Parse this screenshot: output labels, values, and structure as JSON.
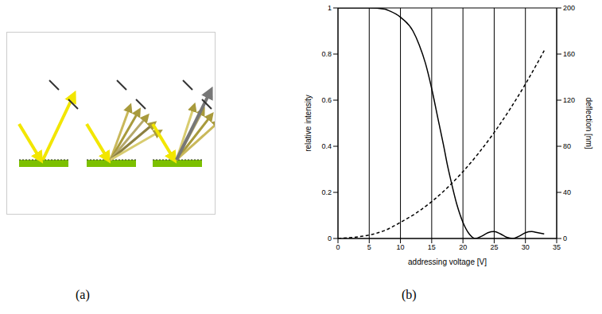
{
  "panel_labels": [
    "(a)",
    "(b)"
  ],
  "chart_data": {
    "type": "line",
    "xlabel": "addressing voltage [V]",
    "ylabel": "relative intensity",
    "y2label": "deflection [nm]",
    "xlim": [
      0,
      35
    ],
    "xticks": [
      0,
      5,
      10,
      15,
      20,
      25,
      30,
      35
    ],
    "ylim": [
      0,
      1
    ],
    "yticks": [
      0,
      0.2,
      0.4,
      0.6,
      0.8,
      1
    ],
    "y2lim": [
      0,
      200
    ],
    "y2ticks": [
      0,
      40,
      80,
      120,
      160,
      200
    ],
    "grid": true,
    "series": [
      {
        "x": [
          0,
          2.5,
          5,
          7.5,
          8,
          10,
          12,
          13,
          14,
          15,
          16,
          17,
          17.5,
          18,
          19,
          20,
          21,
          22,
          23,
          24,
          25,
          26,
          27,
          28,
          29,
          30,
          31,
          32,
          33
        ],
        "values": [
          1,
          1,
          1,
          0.995,
          0.99,
          0.96,
          0.9,
          0.84,
          0.76,
          0.65,
          0.52,
          0.39,
          0.32,
          0.26,
          0.15,
          0.07,
          0.02,
          0,
          0.01,
          0.025,
          0.03,
          0.02,
          0.005,
          0,
          0.01,
          0.025,
          0.03,
          0.025,
          0.02
        ],
        "color": "#000000",
        "line_style": "solid"
      },
      {
        "x": [
          0,
          2.5,
          5,
          7.5,
          10,
          12.5,
          15,
          17.5,
          20,
          22.5,
          25,
          27.5,
          30,
          32.5,
          33
        ],
        "values": [
          0,
          1,
          3,
          7,
          14,
          22,
          32,
          44,
          58,
          74,
          92,
          112,
          134,
          158,
          163
        ],
        "color": "#000000",
        "line_style": "dashed",
        "axis": "y2"
      }
    ]
  }
}
